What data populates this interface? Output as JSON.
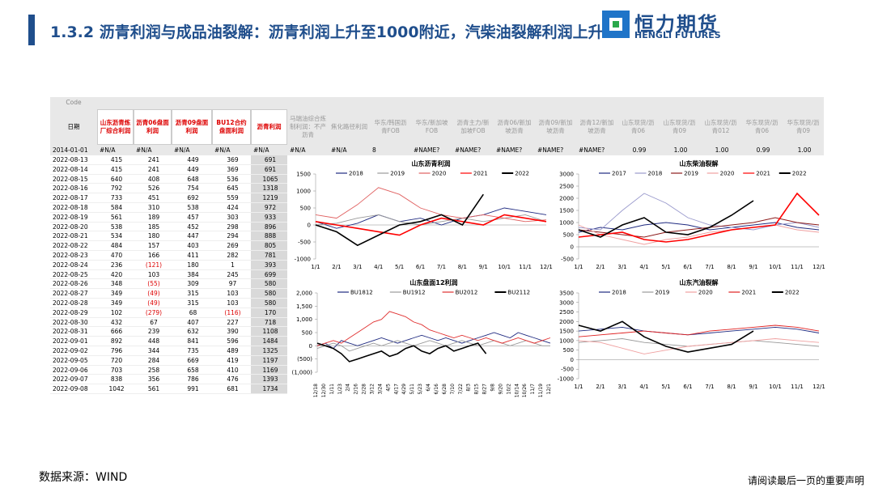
{
  "header": {
    "title": "1.3.2 沥青利润与成品油裂解：沥青利润上升至1000附近，汽柴油裂解利润上升",
    "logo_cn": "恒力期货",
    "logo_en": "HENGLI FUTURES"
  },
  "table": {
    "code_label": "Code",
    "date_label": "日期",
    "columns": [
      "山东沥青炼厂综合利润",
      "沥青06盘面利润",
      "沥青09盘面利润",
      "BU12合约盘面利润",
      "沥青利润",
      "马瑞油综合炼制利润：不产沥青",
      "焦化路径利润",
      "华东/韩国沥青FOB",
      "华东/新加坡FOB",
      "沥青主力/新加坡FOB",
      "沥青06/新加坡沥青",
      "沥青09/新加坡沥青",
      "沥青12/新加坡沥青",
      "山东现货/沥青06",
      "山东现货/沥青09",
      "山东现货/沥青012",
      "华东现货/沥青06",
      "华东现货/沥青09"
    ],
    "first_row": [
      "2014-01-01",
      "#N/A",
      "#N/A",
      "#N/A",
      "#N/A",
      "#N/A",
      "#N/A",
      "#N/A",
      "8",
      "#NAME?",
      "#NAME?",
      "#NAME?",
      "#NAME?",
      "#NAME?",
      "0.99",
      "1.00",
      "1.00",
      "0.99",
      "1.00"
    ],
    "rows": [
      [
        "2022-08-13",
        "415",
        "241",
        "449",
        "369",
        "691"
      ],
      [
        "2022-08-14",
        "415",
        "241",
        "449",
        "369",
        "691"
      ],
      [
        "2022-08-15",
        "640",
        "408",
        "648",
        "536",
        "1065"
      ],
      [
        "2022-08-16",
        "792",
        "526",
        "754",
        "645",
        "1318"
      ],
      [
        "2022-08-17",
        "733",
        "451",
        "692",
        "559",
        "1219"
      ],
      [
        "2022-08-18",
        "584",
        "310",
        "538",
        "424",
        "972"
      ],
      [
        "2022-08-19",
        "561",
        "189",
        "457",
        "303",
        "933"
      ],
      [
        "2022-08-20",
        "538",
        "185",
        "452",
        "298",
        "896"
      ],
      [
        "2022-08-21",
        "534",
        "180",
        "447",
        "294",
        "888"
      ],
      [
        "2022-08-22",
        "484",
        "157",
        "403",
        "269",
        "805"
      ],
      [
        "2022-08-23",
        "470",
        "166",
        "411",
        "282",
        "781"
      ],
      [
        "2022-08-24",
        "236",
        "(121)",
        "180",
        "1",
        "393"
      ],
      [
        "2022-08-25",
        "420",
        "103",
        "384",
        "245",
        "699"
      ],
      [
        "2022-08-26",
        "348",
        "(55)",
        "309",
        "97",
        "580"
      ],
      [
        "2022-08-27",
        "349",
        "(49)",
        "315",
        "103",
        "580"
      ],
      [
        "2022-08-28",
        "349",
        "(49)",
        "315",
        "103",
        "580"
      ],
      [
        "2022-08-29",
        "102",
        "(279)",
        "68",
        "(116)",
        "170"
      ],
      [
        "2022-08-30",
        "432",
        "67",
        "407",
        "227",
        "718"
      ],
      [
        "2022-08-31",
        "666",
        "239",
        "632",
        "390",
        "1108"
      ],
      [
        "2022-09-01",
        "892",
        "448",
        "841",
        "596",
        "1484"
      ],
      [
        "2022-09-02",
        "796",
        "344",
        "735",
        "489",
        "1325"
      ],
      [
        "2022-09-05",
        "720",
        "284",
        "669",
        "419",
        "1197"
      ],
      [
        "2022-09-06",
        "703",
        "258",
        "658",
        "410",
        "1169"
      ],
      [
        "2022-09-07",
        "838",
        "356",
        "786",
        "476",
        "1393"
      ],
      [
        "2022-09-08",
        "1042",
        "561",
        "991",
        "681",
        "1734"
      ]
    ]
  },
  "charts": [
    {
      "type": "line",
      "title": "山东沥青利润",
      "categories": [
        "1/1",
        "2/1",
        "3/1",
        "4/1",
        "5/1",
        "6/1",
        "7/1",
        "8/1",
        "9/1",
        "10/1",
        "11/1",
        "12/1"
      ],
      "ylim": [
        -1000,
        1500
      ],
      "yticks": [
        -1000,
        -500,
        0,
        500,
        1000,
        1500
      ],
      "series": [
        {
          "name": "2018",
          "color": "#1f2a80",
          "values": [
            100,
            -100,
            50,
            300,
            100,
            200,
            0,
            200,
            300,
            500,
            400,
            300
          ]
        },
        {
          "name": "2019",
          "color": "#999999",
          "values": [
            0,
            50,
            200,
            300,
            100,
            0,
            100,
            200,
            100,
            200,
            300,
            100
          ]
        },
        {
          "name": "2020",
          "color": "#e06060",
          "values": [
            300,
            200,
            600,
            1100,
            900,
            500,
            300,
            200,
            300,
            200,
            100,
            150
          ]
        },
        {
          "name": "2021",
          "color": "#ff0000",
          "values": [
            100,
            0,
            -100,
            -200,
            -300,
            0,
            200,
            100,
            0,
            300,
            200,
            100
          ]
        },
        {
          "name": "2022",
          "color": "#000000",
          "values": [
            0,
            -200,
            -600,
            -300,
            0,
            100,
            300,
            0,
            900,
            null,
            null,
            null
          ]
        }
      ]
    },
    {
      "type": "line",
      "title": "山东柴油裂解",
      "categories": [
        "1/1",
        "2/1",
        "3/1",
        "4/1",
        "5/1",
        "6/1",
        "7/1",
        "8/1",
        "9/1",
        "10/1",
        "11/1",
        "12/1"
      ],
      "ylim": [
        -500,
        3000
      ],
      "yticks": [
        -500,
        0,
        500,
        1000,
        1500,
        2000,
        2500,
        3000
      ],
      "series": [
        {
          "name": "2017",
          "color": "#1f2a80",
          "values": [
            600,
            800,
            700,
            900,
            1000,
            900,
            700,
            800,
            900,
            1000,
            800,
            700
          ]
        },
        {
          "name": "2018",
          "color": "#9999cc",
          "values": [
            800,
            700,
            1500,
            2200,
            1800,
            1200,
            900,
            800,
            700,
            900,
            1000,
            800
          ]
        },
        {
          "name": "2019",
          "color": "#8b1a1a",
          "values": [
            700,
            600,
            500,
            400,
            600,
            700,
            800,
            900,
            1000,
            1200,
            1000,
            900
          ]
        },
        {
          "name": "2020",
          "color": "#f0a0a0",
          "values": [
            900,
            500,
            300,
            100,
            300,
            400,
            600,
            700,
            800,
            900,
            700,
            600
          ]
        },
        {
          "name": "2021",
          "color": "#ff0000",
          "values": [
            400,
            500,
            600,
            300,
            200,
            300,
            500,
            700,
            800,
            900,
            2200,
            1300
          ]
        },
        {
          "name": "2022",
          "color": "#000000",
          "values": [
            700,
            400,
            900,
            1200,
            600,
            500,
            800,
            1300,
            1900,
            null,
            null,
            null
          ]
        }
      ]
    },
    {
      "type": "line",
      "title": "山东盘面12利润",
      "rotate": true,
      "categories": [
        "12/18",
        "12/30",
        "1/11",
        "1/23",
        "2/4",
        "2/16",
        "2/28",
        "3/12",
        "3/24",
        "4/5",
        "4/17",
        "4/29",
        "5/11",
        "5/23",
        "6/4",
        "6/16",
        "6/28",
        "7/10",
        "7/22",
        "8/3",
        "8/15",
        "8/27",
        "9/8",
        "9/20",
        "10/2",
        "10/14",
        "10/26",
        "11/7",
        "11/19",
        "12/1"
      ],
      "ylim": [
        -1000,
        2000
      ],
      "yticks": [
        {
          "value": -1000,
          "label": "(1,000)"
        },
        {
          "value": -500,
          "label": "(500)"
        },
        0,
        500,
        {
          "value": 1000,
          "label": "1,000"
        },
        {
          "value": 1500,
          "label": "1,500"
        },
        {
          "value": 2000,
          "label": "2,000"
        }
      ],
      "series": [
        {
          "name": "BU1812",
          "color": "#1f2a80",
          "values": [
            0,
            100,
            -100,
            200,
            100,
            0,
            100,
            200,
            300,
            200,
            100,
            200,
            300,
            400,
            300,
            200,
            300,
            200,
            100,
            200,
            300,
            400,
            500,
            400,
            300,
            500,
            400,
            300,
            200,
            100
          ]
        },
        {
          "name": "BU1912",
          "color": "#999999",
          "values": [
            -100,
            0,
            100,
            0,
            -200,
            -100,
            0,
            100,
            0,
            100,
            200,
            100,
            0,
            100,
            200,
            100,
            0,
            100,
            200,
            100,
            0,
            100,
            200,
            100,
            0,
            100,
            200,
            100,
            0,
            0
          ]
        },
        {
          "name": "BU2012",
          "color": "#e03030",
          "values": [
            0,
            100,
            200,
            100,
            300,
            500,
            700,
            900,
            1000,
            1300,
            1200,
            1100,
            900,
            800,
            600,
            500,
            400,
            300,
            400,
            300,
            200,
            300,
            200,
            100,
            200,
            300,
            200,
            100,
            200,
            300
          ]
        },
        {
          "name": "BU2112",
          "color": "#000000",
          "values": [
            100,
            0,
            -100,
            -300,
            -600,
            -500,
            -400,
            -300,
            -200,
            -400,
            -300,
            -100,
            0,
            -200,
            -300,
            -100,
            0,
            -200,
            -100,
            0,
            100,
            -300,
            null,
            null,
            null,
            null,
            null,
            null,
            null,
            null
          ]
        }
      ]
    },
    {
      "type": "line",
      "title": "山东汽油裂解",
      "categories": [
        "1/1",
        "2/1",
        "3/1",
        "4/1",
        "5/1",
        "6/1",
        "7/1",
        "8/1",
        "9/1",
        "10/1",
        "11/1",
        "12/1"
      ],
      "ylim": [
        -1000,
        3500
      ],
      "yticks": [
        -1000,
        -500,
        0,
        500,
        1000,
        1500,
        2000,
        2500,
        3000,
        3500
      ],
      "series": [
        {
          "name": "2018",
          "color": "#1f2a80",
          "values": [
            1500,
            1600,
            1700,
            1500,
            1400,
            1300,
            1400,
            1500,
            1600,
            1700,
            1600,
            1400
          ]
        },
        {
          "name": "2019",
          "color": "#999999",
          "values": [
            900,
            1000,
            1100,
            900,
            800,
            700,
            800,
            900,
            1000,
            900,
            800,
            700
          ]
        },
        {
          "name": "2020",
          "color": "#f0a0a0",
          "values": [
            1000,
            900,
            600,
            300,
            500,
            700,
            800,
            900,
            1000,
            1100,
            1000,
            900
          ]
        },
        {
          "name": "2021",
          "color": "#e02020",
          "values": [
            1200,
            1300,
            1400,
            1500,
            1400,
            1300,
            1500,
            1600,
            1700,
            1800,
            1700,
            1500
          ]
        },
        {
          "name": "2022",
          "color": "#000000",
          "values": [
            1800,
            1500,
            2000,
            1200,
            700,
            400,
            600,
            800,
            1500,
            null,
            null,
            null
          ]
        }
      ]
    }
  ],
  "footer": {
    "source": "数据来源：WIND",
    "disclaimer": "请阅读最后一页的重要声明"
  }
}
